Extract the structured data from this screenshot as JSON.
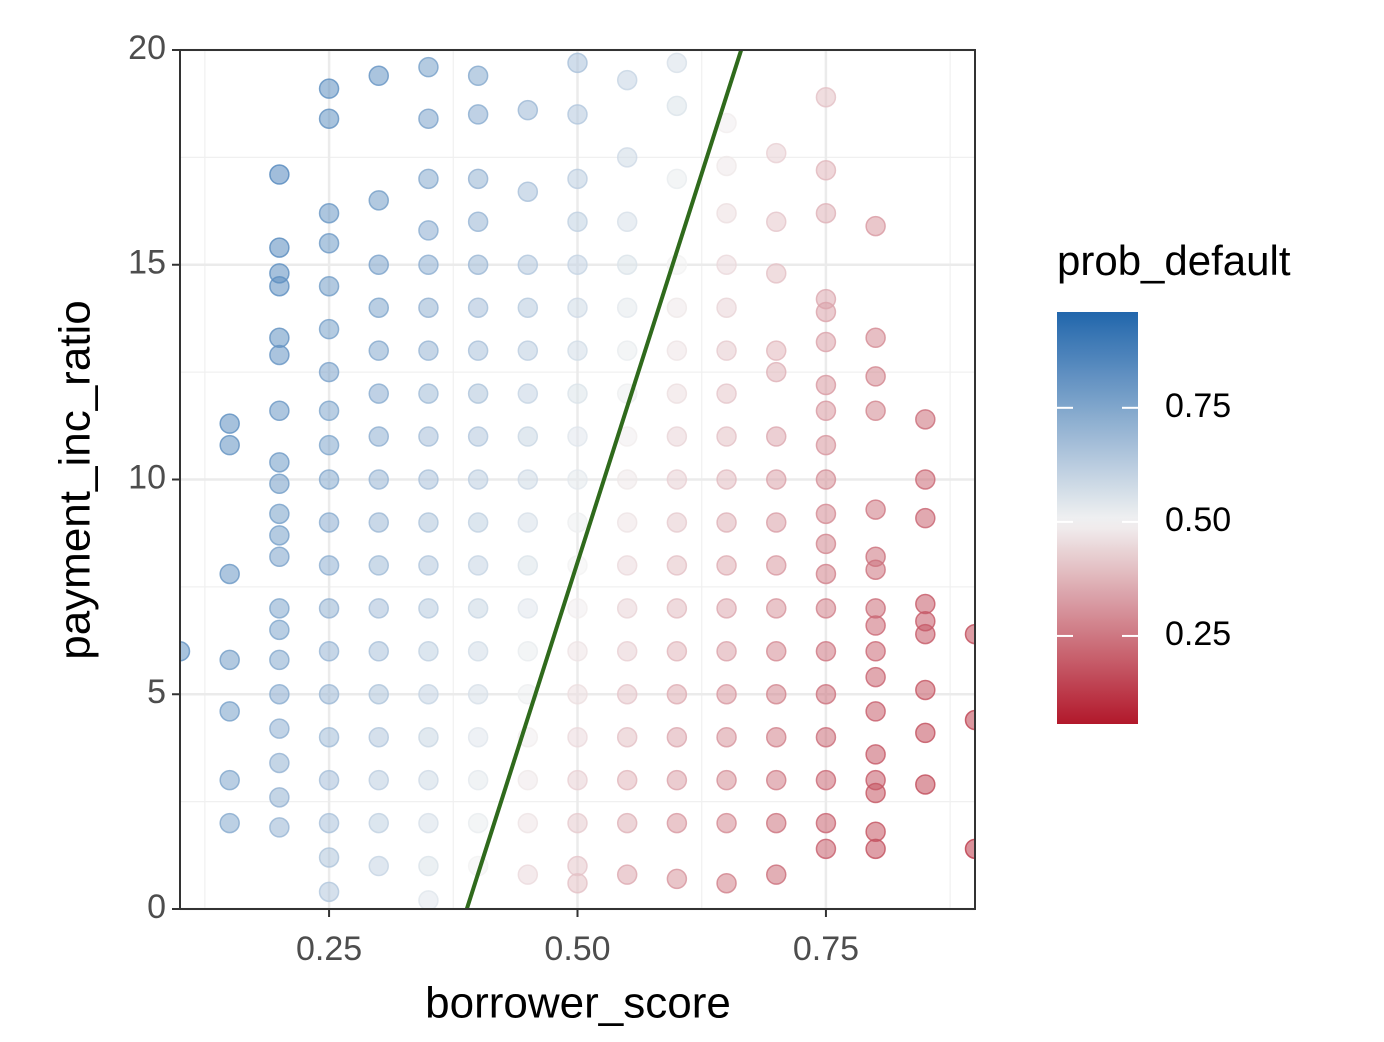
{
  "chart_data": {
    "type": "scatter",
    "x_label": "borrower_score",
    "y_label": "payment_inc_ratio",
    "xlim": [
      0.1,
      0.9
    ],
    "ylim": [
      0,
      20
    ],
    "xticks": [
      0.25,
      {
        "value": 0.5,
        "label": "0.50"
      },
      0.75
    ],
    "yticks": [
      0,
      5,
      10,
      15,
      20
    ],
    "xminor": [
      0.125,
      0.375,
      0.625,
      0.875
    ],
    "yminor": [
      2.5,
      7.5,
      12.5,
      17.5
    ],
    "grid": true,
    "colorscale": {
      "low": "#b2182b",
      "mid": "#f2f2f2",
      "high": "#2166ac",
      "midpoint": 0.5
    },
    "colorbar": {
      "title": "prob_default",
      "lim": [
        0.057,
        0.96
      ],
      "ticks": [
        {
          "value": 0.25,
          "label": "0.25"
        },
        {
          "value": 0.5,
          "label": "0.50"
        },
        {
          "value": 0.75,
          "label": "0.75"
        }
      ]
    },
    "line": {
      "x": [
        0.3886,
        0.6647
      ],
      "y": [
        0,
        20
      ],
      "color": "#2f6a1c"
    },
    "columns": [
      {
        "x": 0.1,
        "y": [
          6.0
        ],
        "values": [
          0.82
        ]
      },
      {
        "x": 0.15,
        "y": [
          11.3,
          10.8,
          7.8,
          5.8,
          4.6,
          3.0,
          2.0
        ],
        "values": [
          0.83,
          0.82,
          0.8,
          0.78,
          0.77,
          0.75,
          0.74
        ]
      },
      {
        "x": 0.2,
        "y": [
          17.1,
          15.4,
          14.8,
          14.5,
          13.3,
          12.9,
          11.6,
          10.4,
          9.9,
          9.2,
          8.7,
          8.2,
          7.0,
          6.5,
          5.8,
          5.0,
          4.2,
          3.4,
          2.6,
          1.9
        ],
        "values": [
          0.85,
          0.84,
          0.83,
          0.83,
          0.82,
          0.81,
          0.8,
          0.79,
          0.78,
          0.77,
          0.77,
          0.76,
          0.75,
          0.75,
          0.74,
          0.73,
          0.72,
          0.71,
          0.71,
          0.7
        ]
      },
      {
        "x": 0.25,
        "y": [
          19.1,
          18.4,
          16.2,
          15.5,
          14.5,
          13.5,
          12.5,
          11.6,
          10.8,
          10.0,
          9.0,
          8.0,
          7.0,
          6.0,
          5.0,
          4.0,
          3.0,
          2.0,
          1.2,
          0.4
        ],
        "values": [
          0.83,
          0.82,
          0.8,
          0.79,
          0.78,
          0.77,
          0.76,
          0.75,
          0.75,
          0.74,
          0.73,
          0.72,
          0.71,
          0.7,
          0.69,
          0.68,
          0.67,
          0.66,
          0.65,
          0.64
        ]
      },
      {
        "x": 0.3,
        "y": [
          19.4,
          16.5,
          15.0,
          14.0,
          13.0,
          12.0,
          11.0,
          10.0,
          9.0,
          8.0,
          7.0,
          6.0,
          5.0,
          4.0,
          3.0,
          2.0,
          1.0
        ],
        "values": [
          0.81,
          0.78,
          0.76,
          0.75,
          0.74,
          0.73,
          0.72,
          0.7,
          0.69,
          0.68,
          0.67,
          0.66,
          0.65,
          0.64,
          0.62,
          0.61,
          0.6
        ]
      },
      {
        "x": 0.35,
        "y": [
          19.6,
          18.4,
          17.0,
          15.8,
          15.0,
          14.0,
          13.0,
          12.0,
          11.0,
          10.0,
          9.0,
          8.0,
          7.0,
          6.0,
          5.0,
          4.0,
          3.0,
          2.0,
          1.0,
          0.2
        ],
        "values": [
          0.77,
          0.76,
          0.74,
          0.73,
          0.72,
          0.71,
          0.7,
          0.68,
          0.67,
          0.66,
          0.65,
          0.64,
          0.63,
          0.61,
          0.6,
          0.59,
          0.58,
          0.56,
          0.55,
          0.54
        ]
      },
      {
        "x": 0.4,
        "y": [
          19.4,
          18.5,
          17.0,
          16.0,
          15.0,
          14.0,
          13.0,
          12.0,
          11.0,
          10.0,
          9.0,
          8.0,
          7.0,
          6.0,
          5.0,
          4.0,
          3.0,
          2.0,
          1.0
        ],
        "values": [
          0.74,
          0.73,
          0.71,
          0.7,
          0.69,
          0.67,
          0.66,
          0.65,
          0.64,
          0.62,
          0.61,
          0.6,
          0.59,
          0.57,
          0.56,
          0.54,
          0.53,
          0.52,
          0.5
        ]
      },
      {
        "x": 0.45,
        "y": [
          18.6,
          16.7,
          15.0,
          14.0,
          13.0,
          12.0,
          11.0,
          10.0,
          9.0,
          8.0,
          7.0,
          6.0,
          5.0,
          4.0,
          3.0,
          2.0,
          0.8
        ],
        "values": [
          0.69,
          0.66,
          0.64,
          0.63,
          0.62,
          0.6,
          0.59,
          0.58,
          0.56,
          0.55,
          0.54,
          0.52,
          0.51,
          0.49,
          0.48,
          0.47,
          0.45
        ]
      },
      {
        "x": 0.5,
        "y": [
          19.7,
          18.5,
          17.0,
          16.0,
          15.0,
          14.0,
          13.0,
          12.0,
          11.0,
          10.0,
          9.0,
          8.0,
          7.0,
          6.0,
          5.0,
          4.0,
          3.0,
          2.0,
          1.0,
          0.6
        ],
        "values": [
          0.66,
          0.64,
          0.62,
          0.61,
          0.6,
          0.58,
          0.57,
          0.55,
          0.54,
          0.53,
          0.51,
          0.5,
          0.49,
          0.47,
          0.46,
          0.45,
          0.43,
          0.42,
          0.41,
          0.4
        ]
      },
      {
        "x": 0.55,
        "y": [
          19.3,
          17.5,
          16.0,
          15.0,
          14.0,
          13.0,
          12.0,
          11.0,
          10.0,
          9.0,
          8.0,
          7.0,
          6.0,
          5.0,
          4.0,
          3.0,
          2.0,
          0.8
        ],
        "values": [
          0.6,
          0.58,
          0.56,
          0.55,
          0.53,
          0.52,
          0.51,
          0.49,
          0.48,
          0.47,
          0.45,
          0.44,
          0.43,
          0.41,
          0.4,
          0.38,
          0.37,
          0.35
        ]
      },
      {
        "x": 0.6,
        "y": [
          19.7,
          18.7,
          17.0,
          15.0,
          14.0,
          13.0,
          12.0,
          11.0,
          10.0,
          9.0,
          8.0,
          7.0,
          6.0,
          5.0,
          4.0,
          3.0,
          2.0,
          0.7
        ],
        "values": [
          0.56,
          0.55,
          0.52,
          0.5,
          0.48,
          0.47,
          0.46,
          0.44,
          0.43,
          0.42,
          0.4,
          0.39,
          0.38,
          0.36,
          0.35,
          0.34,
          0.32,
          0.31
        ]
      },
      {
        "x": 0.65,
        "y": [
          18.3,
          17.3,
          16.2,
          15.0,
          14.0,
          13.0,
          12.0,
          11.0,
          10.0,
          9.0,
          8.0,
          7.0,
          6.0,
          5.0,
          4.0,
          3.0,
          2.0,
          0.6
        ],
        "values": [
          0.49,
          0.48,
          0.46,
          0.45,
          0.44,
          0.42,
          0.41,
          0.4,
          0.39,
          0.37,
          0.36,
          0.35,
          0.34,
          0.32,
          0.31,
          0.3,
          0.29,
          0.27
        ]
      },
      {
        "x": 0.7,
        "y": [
          17.6,
          16.0,
          14.8,
          13.0,
          12.5,
          11.0,
          10.0,
          9.0,
          8.0,
          7.0,
          6.0,
          5.0,
          4.0,
          3.0,
          2.0,
          0.8
        ],
        "values": [
          0.43,
          0.41,
          0.4,
          0.38,
          0.37,
          0.35,
          0.34,
          0.33,
          0.32,
          0.31,
          0.29,
          0.28,
          0.27,
          0.26,
          0.24,
          0.23
        ]
      },
      {
        "x": 0.75,
        "y": [
          18.9,
          17.2,
          16.2,
          14.2,
          13.9,
          13.2,
          12.2,
          11.6,
          10.8,
          10.0,
          9.2,
          8.5,
          7.8,
          7.0,
          6.0,
          5.0,
          4.0,
          3.0,
          2.0,
          1.4
        ],
        "values": [
          0.4,
          0.38,
          0.37,
          0.35,
          0.34,
          0.34,
          0.32,
          0.32,
          0.31,
          0.3,
          0.29,
          0.28,
          0.27,
          0.27,
          0.25,
          0.24,
          0.23,
          0.22,
          0.21,
          0.2
        ]
      },
      {
        "x": 0.8,
        "y": [
          15.9,
          13.3,
          12.4,
          11.6,
          9.3,
          8.2,
          7.9,
          7.0,
          6.6,
          6.0,
          5.4,
          4.6,
          3.6,
          3.0,
          2.7,
          1.8,
          1.4
        ],
        "values": [
          0.32,
          0.29,
          0.28,
          0.28,
          0.25,
          0.24,
          0.24,
          0.23,
          0.22,
          0.22,
          0.21,
          0.2,
          0.19,
          0.19,
          0.18,
          0.18,
          0.17
        ]
      },
      {
        "x": 0.85,
        "y": [
          11.4,
          10.0,
          9.1,
          7.1,
          6.7,
          6.4,
          5.1,
          4.1,
          2.9
        ],
        "values": [
          0.23,
          0.22,
          0.21,
          0.19,
          0.19,
          0.19,
          0.18,
          0.17,
          0.16
        ]
      },
      {
        "x": 0.9,
        "y": [
          6.4,
          4.4,
          1.4
        ],
        "values": [
          0.16,
          0.14,
          0.12
        ]
      }
    ]
  }
}
